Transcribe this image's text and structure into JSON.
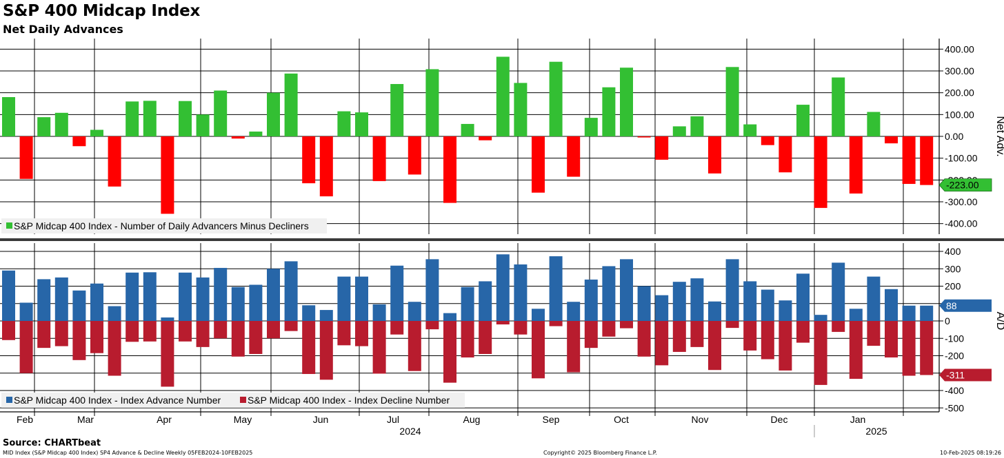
{
  "title": "S&P 400 Midcap Index",
  "subtitle": "Net Daily Advances",
  "source": "Source: CHARTbeat",
  "footer": {
    "left": "MID Index (S&P Midcap 400 Index) SP4 Advance & Decline  Weekly 05FEB2024-10FEB2025",
    "center": "Copyright© 2025 Bloomberg Finance L.P.",
    "right": "10-Feb-2025 08:19:26"
  },
  "colors": {
    "positive": "#33bf33",
    "negative": "#ff0000",
    "advance": "#2766a8",
    "decline": "#b81c2e",
    "grid": "#000000"
  },
  "chart_data": [
    {
      "type": "bar",
      "panel": "top",
      "ylabel": "Net Adv.",
      "ylim": [
        -450,
        430
      ],
      "yticks": [
        400,
        300,
        200,
        100,
        0,
        -100,
        -200,
        -300,
        -400
      ],
      "ytick_labels": [
        "400.00",
        "300.00",
        "200.00",
        "100.00",
        "0.00",
        "-100.00",
        "-200.00",
        "-300.00",
        "-400.00"
      ],
      "last_value_label": "-223.00",
      "legend_position": "bottom-left",
      "series": [
        {
          "name": "S&P Midcap 400 Index - Number of Daily Advancers Minus Decliners",
          "values": [
            180,
            -195,
            88,
            108,
            -45,
            30,
            -230,
            160,
            163,
            -355,
            162,
            100,
            210,
            -10,
            22,
            200,
            288,
            -215,
            -275,
            115,
            110,
            -205,
            240,
            -175,
            308,
            -305,
            57,
            -18,
            365,
            245,
            -258,
            342,
            -185,
            85,
            225,
            315,
            -5,
            -107,
            46,
            92,
            -170,
            318,
            55,
            -40,
            -165,
            145,
            -328,
            270,
            -262,
            112,
            -32,
            -218,
            -223
          ]
        }
      ]
    },
    {
      "type": "bar",
      "panel": "bottom",
      "ylabel": "A/D",
      "ylim": [
        -530,
        430
      ],
      "yticks": [
        400,
        300,
        200,
        100,
        0,
        -100,
        -200,
        -300,
        -400,
        -500
      ],
      "ytick_labels": [
        "400",
        "300",
        "200",
        "100",
        "0",
        "-100",
        "-200",
        "-300",
        "-400",
        "-500"
      ],
      "last_value_labels": [
        "88",
        "-311"
      ],
      "legend_position": "bottom-left",
      "series": [
        {
          "name": "S&P Midcap 400 Index - Index Advance Number",
          "values": [
            290,
            105,
            240,
            250,
            175,
            215,
            85,
            278,
            280,
            20,
            278,
            250,
            305,
            195,
            208,
            300,
            343,
            90,
            63,
            255,
            255,
            95,
            318,
            110,
            355,
            45,
            195,
            228,
            383,
            325,
            70,
            372,
            110,
            238,
            315,
            355,
            200,
            148,
            225,
            245,
            112,
            355,
            228,
            180,
            118,
            272,
            35,
            335,
            70,
            255,
            183,
            88,
            88
          ]
        },
        {
          "name": "S&P Midcap 400 Index - Index Decline Number",
          "values": [
            -110,
            -300,
            -155,
            -145,
            -225,
            -185,
            -315,
            -120,
            -118,
            -378,
            -118,
            -150,
            -100,
            -205,
            -190,
            -100,
            -58,
            -305,
            -338,
            -140,
            -145,
            -303,
            -78,
            -288,
            -48,
            -355,
            -210,
            -190,
            -20,
            -78,
            -330,
            -30,
            -295,
            -155,
            -90,
            -42,
            -205,
            -255,
            -178,
            -150,
            -282,
            -40,
            -170,
            -220,
            -285,
            -125,
            -368,
            -63,
            -333,
            -143,
            -210,
            -315,
            -311
          ]
        }
      ]
    }
  ],
  "xaxis": {
    "months": [
      "Feb",
      "Mar",
      "Apr",
      "May",
      "Jun",
      "Jul",
      "Aug",
      "Sep",
      "Oct",
      "Nov",
      "Dec",
      "Jan"
    ],
    "years": [
      "2024",
      "2025"
    ]
  }
}
